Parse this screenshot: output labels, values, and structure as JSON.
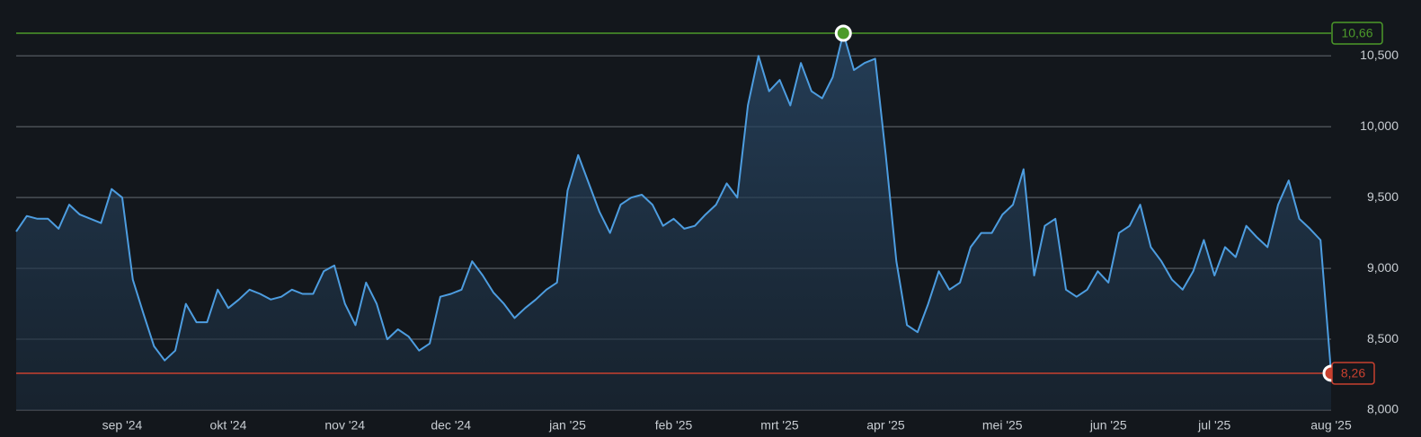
{
  "chart_data": {
    "type": "line",
    "categories": [
      null,
      null,
      null,
      null,
      null,
      null,
      null,
      null,
      null,
      null,
      "sep '24",
      null,
      null,
      null,
      null,
      null,
      null,
      null,
      null,
      null,
      "okt '24",
      null,
      null,
      null,
      null,
      null,
      null,
      null,
      null,
      null,
      null,
      "nov '24",
      null,
      null,
      null,
      null,
      null,
      null,
      null,
      null,
      null,
      "dec '24",
      null,
      null,
      null,
      null,
      null,
      null,
      null,
      null,
      null,
      null,
      "jan '25",
      null,
      null,
      null,
      null,
      null,
      null,
      null,
      null,
      null,
      "feb '25",
      null,
      null,
      null,
      null,
      null,
      null,
      null,
      null,
      null,
      "mrt '25",
      null,
      null,
      null,
      null,
      null,
      null,
      null,
      null,
      null,
      "apr '25",
      null,
      null,
      null,
      null,
      null,
      null,
      null,
      null,
      null,
      null,
      "mei '25",
      null,
      null,
      null,
      null,
      null,
      null,
      null,
      null,
      null,
      "jun '25",
      null,
      null,
      null,
      null,
      null,
      null,
      null,
      null,
      null,
      "jul '25",
      null,
      null,
      null,
      null,
      null,
      null,
      null,
      null,
      null,
      null,
      "aug '25"
    ],
    "values": [
      9.26,
      9.37,
      9.35,
      9.35,
      9.28,
      9.45,
      9.38,
      9.35,
      9.32,
      9.56,
      9.5,
      8.92,
      8.68,
      8.45,
      8.35,
      8.42,
      8.75,
      8.62,
      8.62,
      8.85,
      8.72,
      8.78,
      8.85,
      8.82,
      8.78,
      8.8,
      8.85,
      8.82,
      8.82,
      8.98,
      9.02,
      8.75,
      8.6,
      8.9,
      8.75,
      8.5,
      8.57,
      8.52,
      8.42,
      8.47,
      8.8,
      8.82,
      8.85,
      9.05,
      8.95,
      8.83,
      8.75,
      8.65,
      8.72,
      8.78,
      8.85,
      8.9,
      9.55,
      9.8,
      9.6,
      9.4,
      9.25,
      9.45,
      9.5,
      9.52,
      9.45,
      9.3,
      9.35,
      9.28,
      9.3,
      9.38,
      9.45,
      9.6,
      9.5,
      10.15,
      10.5,
      10.25,
      10.33,
      10.15,
      10.45,
      10.25,
      10.2,
      10.35,
      10.66,
      10.4,
      10.45,
      10.48,
      9.8,
      9.05,
      8.6,
      8.55,
      8.75,
      8.98,
      8.85,
      8.9,
      9.15,
      9.25,
      9.25,
      9.38,
      9.45,
      9.7,
      8.95,
      9.3,
      9.35,
      8.85,
      8.8,
      8.85,
      8.98,
      8.9,
      9.25,
      9.3,
      9.45,
      9.15,
      9.05,
      8.92,
      8.85,
      8.98,
      9.2,
      8.95,
      9.15,
      9.08,
      9.3,
      9.22,
      9.15,
      9.45,
      9.62,
      9.35,
      9.28,
      9.2,
      8.26
    ],
    "color": "#4d9de0",
    "ylim": [
      8,
      10.85
    ],
    "yticks": [
      {
        "value": 8,
        "label": "8,000"
      },
      {
        "value": 8.5,
        "label": "8,500"
      },
      {
        "value": 9,
        "label": "9,000"
      },
      {
        "value": 9.5,
        "label": "9,500"
      },
      {
        "value": 10,
        "label": "10,000"
      },
      {
        "value": 10.5,
        "label": "10,500"
      }
    ],
    "grid": true,
    "max": {
      "value": 10.66,
      "label": "10,66",
      "color": "#4c9a2a"
    },
    "min": {
      "value": 8.26,
      "label": "8,26",
      "color": "#c8402f"
    }
  }
}
